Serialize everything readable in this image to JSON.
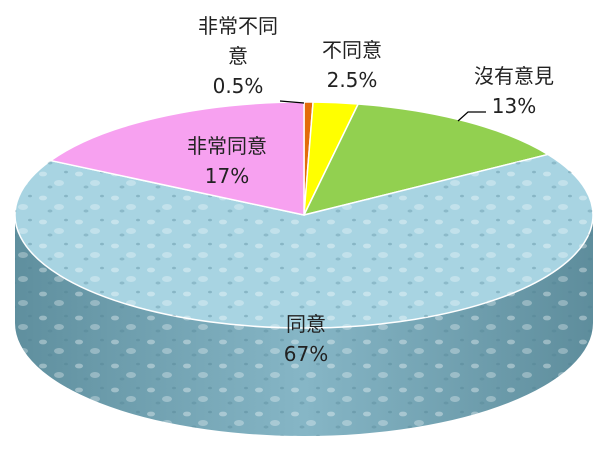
{
  "chart_data": {
    "type": "pie",
    "title": "",
    "style": "3d",
    "slices": [
      {
        "label_lines": [
          "非常不同",
          "意"
        ],
        "value_text": "0.5%",
        "value": 0.5,
        "color": "#e46c0a"
      },
      {
        "label_lines": [
          "不同意"
        ],
        "value_text": "2.5%",
        "value": 2.5,
        "color": "#ffff00"
      },
      {
        "label_lines": [
          "沒有意見"
        ],
        "value_text": "13%",
        "value": 13,
        "color": "#92d050"
      },
      {
        "label_lines": [
          "同意"
        ],
        "value_text": "67%",
        "value": 67,
        "color": "#a8d4e2"
      },
      {
        "label_lines": [
          "非常同意"
        ],
        "value_text": "17%",
        "value": 17,
        "color": "#f7a1f0"
      }
    ]
  }
}
